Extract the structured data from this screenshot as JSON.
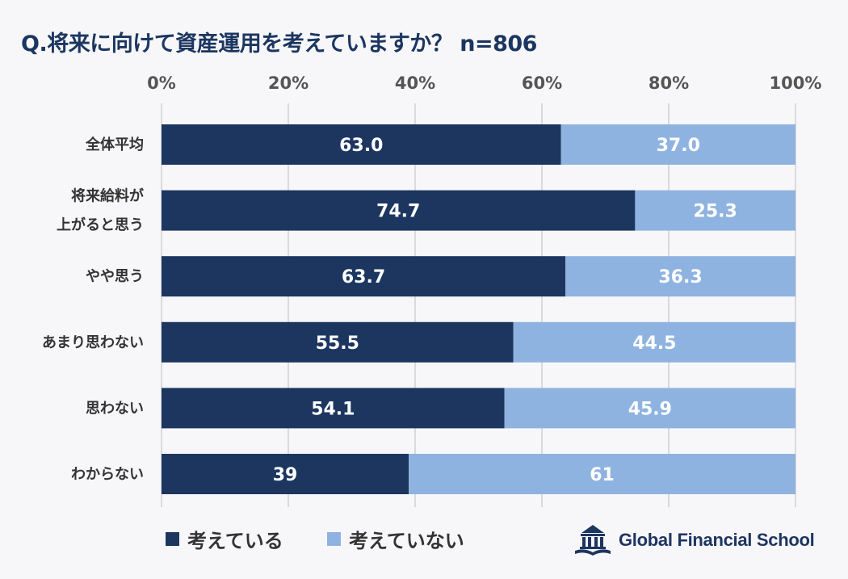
{
  "title": "Q.将来に向けて資産運用を考えていますか？ n=806",
  "brand": "Global Financial School",
  "colors": {
    "series1": "#1c3660",
    "series2": "#8fb3e0",
    "title": "#1c3660"
  },
  "chart_data": {
    "type": "bar",
    "orientation": "horizontal",
    "stacked": true,
    "title": "Q.将来に向けて資産運用を考えていますか？ n=806",
    "x_ticks": [
      "0%",
      "20%",
      "40%",
      "60%",
      "80%",
      "100%"
    ],
    "xlim": [
      0,
      100
    ],
    "grid": true,
    "legend_position": "bottom-left",
    "categories": [
      [
        "全体平均"
      ],
      [
        "将来給料が",
        "上がると思う"
      ],
      [
        "やや思う"
      ],
      [
        "あまり思わない"
      ],
      [
        "思わない"
      ],
      [
        "わからない"
      ]
    ],
    "series": [
      {
        "name": "考えている",
        "values": [
          63.0,
          74.7,
          63.7,
          55.5,
          54.1,
          39
        ],
        "labels": [
          "63.0",
          "74.7",
          "63.7",
          "55.5",
          "54.1",
          "39"
        ]
      },
      {
        "name": "考えていない",
        "values": [
          37.0,
          25.3,
          36.3,
          44.5,
          45.9,
          61
        ],
        "labels": [
          "37.0",
          "25.3",
          "36.3",
          "44.5",
          "45.9",
          "61"
        ]
      }
    ]
  }
}
